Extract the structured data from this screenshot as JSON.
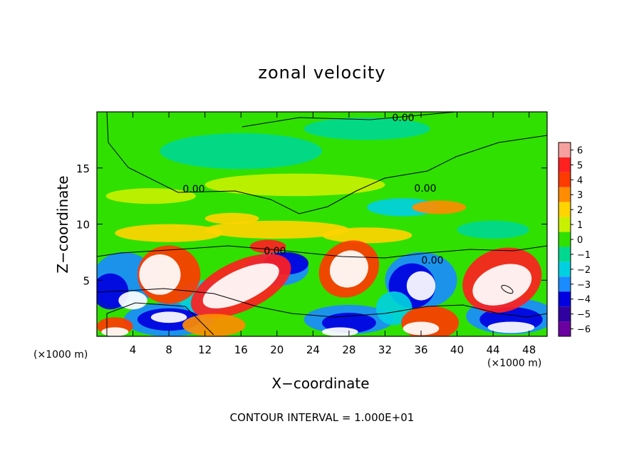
{
  "chart_data": {
    "type": "heatmap",
    "title": "zonal velocity",
    "xlabel": "X−coordinate",
    "ylabel": "Z−coordinate",
    "x_unit": "(×1000 m)",
    "y_unit": "(×1000 m)",
    "xlim": [
      0,
      50
    ],
    "ylim": [
      0,
      20
    ],
    "x_ticks": [
      "4",
      "8",
      "12",
      "16",
      "20",
      "24",
      "28",
      "32",
      "36",
      "40",
      "44",
      "48"
    ],
    "y_ticks": [
      "5",
      "10",
      "15"
    ],
    "colorbar": {
      "levels": [
        "6",
        "5",
        "4",
        "3",
        "2",
        "1",
        "0",
        "−1",
        "−2",
        "−3",
        "−4",
        "−5",
        "−6"
      ],
      "colors": [
        "#f7a0a0",
        "#ff2020",
        "#ff3a00",
        "#ff8c00",
        "#ffd400",
        "#c8f000",
        "#30e000",
        "#00d890",
        "#00d0e0",
        "#1a8cff",
        "#0000e0",
        "#3000a0",
        "#6a00a0"
      ]
    },
    "contour_labels": [
      "0.00",
      "0.00",
      "0.00",
      "0.00",
      "0.00"
    ],
    "footer": "CONTOUR INTERVAL = 1.000E+01"
  }
}
